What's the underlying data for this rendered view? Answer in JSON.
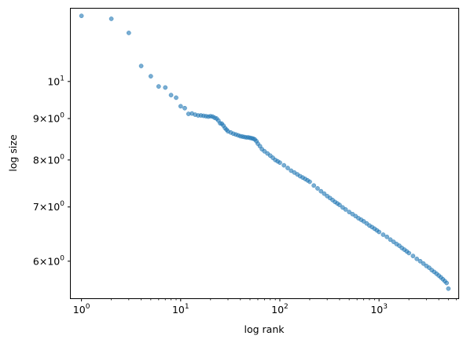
{
  "chart_data": {
    "type": "scatter",
    "xlabel": "log rank",
    "ylabel": "log size",
    "x_scale": "log",
    "y_scale": "log",
    "xlim": [
      0.78,
      6300
    ],
    "ylim": [
      5.4,
      12.3
    ],
    "grid": false,
    "marker_color": "#1f77b4",
    "marker_alpha": 0.6,
    "x_ticks": [
      {
        "value": 1,
        "base": "10",
        "exp": "0"
      },
      {
        "value": 10,
        "base": "10",
        "exp": "1"
      },
      {
        "value": 100,
        "base": "10",
        "exp": "2"
      },
      {
        "value": 1000,
        "base": "10",
        "exp": "3"
      }
    ],
    "y_ticks": [
      {
        "value": 6,
        "mult": "6×10",
        "exp": "0"
      },
      {
        "value": 7,
        "mult": "7×10",
        "exp": "0"
      },
      {
        "value": 8,
        "mult": "8×10",
        "exp": "0"
      },
      {
        "value": 9,
        "mult": "9×10",
        "exp": "0"
      },
      {
        "value": 10,
        "base": "10",
        "exp": "1"
      }
    ],
    "series": [
      {
        "x": [
          1,
          2,
          3,
          4,
          5,
          6,
          7,
          8,
          9,
          10,
          11,
          12,
          13,
          14,
          15,
          16,
          17,
          18,
          19,
          20,
          21,
          22,
          23,
          24,
          25,
          26,
          27,
          28,
          29,
          30,
          32,
          34,
          36,
          38,
          40,
          42,
          44,
          46,
          48,
          50,
          52,
          54,
          56,
          58,
          60,
          63,
          66,
          70,
          75,
          80,
          85,
          90,
          95,
          100,
          110,
          120,
          130,
          140,
          150,
          160,
          170,
          180,
          190,
          200,
          220,
          240,
          260,
          280,
          300,
          320,
          340,
          360,
          380,
          400,
          430,
          460,
          500,
          540,
          580,
          620,
          660,
          700,
          750,
          800,
          850,
          900,
          950,
          1000,
          1100,
          1200,
          1300,
          1400,
          1500,
          1600,
          1700,
          1800,
          1900,
          2000,
          2200,
          2400,
          2600,
          2800,
          3000,
          3200,
          3400,
          3600,
          3800,
          4000,
          4200,
          4400,
          4600,
          4800,
          5000
        ],
        "y": [
          12.05,
          11.95,
          11.48,
          10.45,
          10.15,
          9.86,
          9.83,
          9.62,
          9.55,
          9.32,
          9.27,
          9.12,
          9.13,
          9.1,
          9.08,
          9.08,
          9.07,
          9.06,
          9.05,
          9.06,
          9.05,
          9.02,
          9.0,
          8.95,
          8.88,
          8.87,
          8.82,
          8.76,
          8.72,
          8.68,
          8.65,
          8.62,
          8.6,
          8.58,
          8.56,
          8.55,
          8.54,
          8.53,
          8.53,
          8.52,
          8.51,
          8.5,
          8.48,
          8.44,
          8.38,
          8.32,
          8.25,
          8.2,
          8.15,
          8.1,
          8.05,
          8.0,
          7.97,
          7.94,
          7.88,
          7.82,
          7.76,
          7.72,
          7.68,
          7.64,
          7.61,
          7.58,
          7.55,
          7.52,
          7.44,
          7.38,
          7.32,
          7.27,
          7.22,
          7.18,
          7.14,
          7.1,
          7.07,
          7.04,
          6.99,
          6.95,
          6.9,
          6.86,
          6.82,
          6.78,
          6.75,
          6.72,
          6.68,
          6.64,
          6.61,
          6.58,
          6.55,
          6.52,
          6.47,
          6.43,
          6.38,
          6.34,
          6.3,
          6.27,
          6.23,
          6.2,
          6.17,
          6.14,
          6.09,
          6.04,
          6.0,
          5.96,
          5.92,
          5.89,
          5.85,
          5.82,
          5.79,
          5.76,
          5.73,
          5.7,
          5.67,
          5.64,
          5.55
        ]
      }
    ]
  }
}
